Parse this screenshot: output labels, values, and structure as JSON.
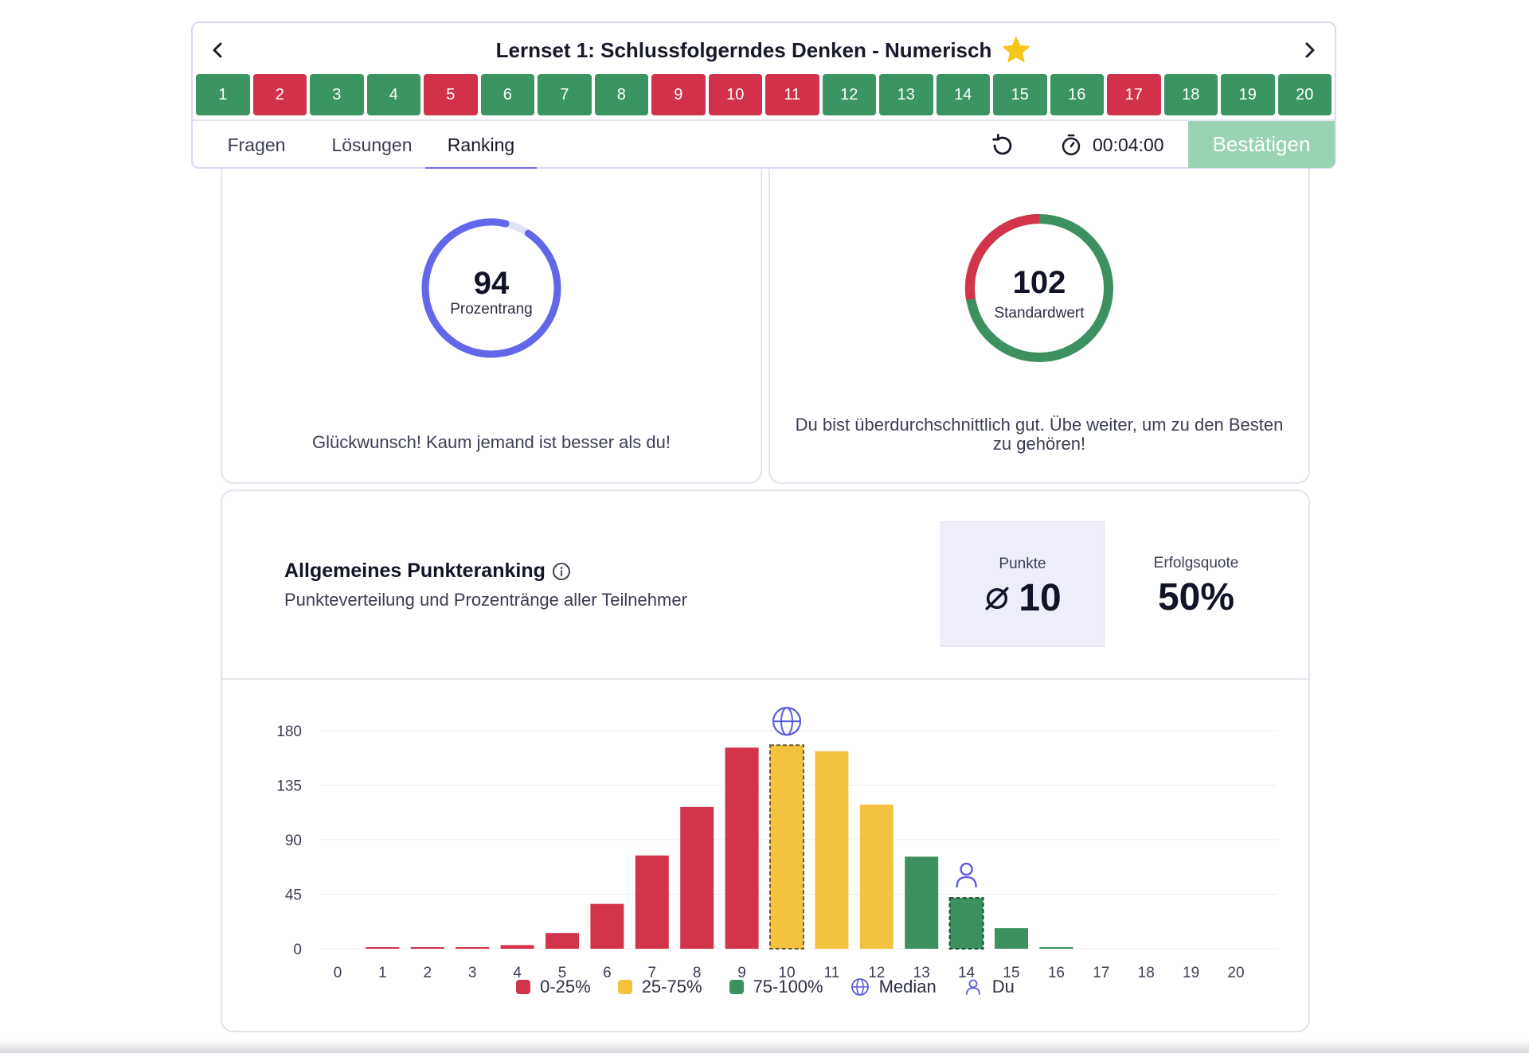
{
  "header": {
    "title": "Lernset 1: Schlussfolgerndes Denken - Numerisch",
    "prev_icon": "chevron-left-icon",
    "next_icon": "chevron-right-icon",
    "star_icon": "star-icon",
    "star_color": "#f5c518"
  },
  "questions": [
    {
      "n": "1",
      "status": "correct"
    },
    {
      "n": "2",
      "status": "wrong"
    },
    {
      "n": "3",
      "status": "correct"
    },
    {
      "n": "4",
      "status": "correct"
    },
    {
      "n": "5",
      "status": "wrong"
    },
    {
      "n": "6",
      "status": "correct"
    },
    {
      "n": "7",
      "status": "correct"
    },
    {
      "n": "8",
      "status": "correct"
    },
    {
      "n": "9",
      "status": "wrong"
    },
    {
      "n": "10",
      "status": "wrong"
    },
    {
      "n": "11",
      "status": "wrong"
    },
    {
      "n": "12",
      "status": "correct"
    },
    {
      "n": "13",
      "status": "correct"
    },
    {
      "n": "14",
      "status": "correct"
    },
    {
      "n": "15",
      "status": "correct"
    },
    {
      "n": "16",
      "status": "correct"
    },
    {
      "n": "17",
      "status": "wrong"
    },
    {
      "n": "18",
      "status": "correct"
    },
    {
      "n": "19",
      "status": "correct"
    },
    {
      "n": "20",
      "status": "correct"
    }
  ],
  "status_colors": {
    "correct": "#3a9563",
    "wrong": "#d1324a"
  },
  "tabs": [
    {
      "label": "Fragen"
    },
    {
      "label": "Lösungen"
    },
    {
      "label": "Ranking",
      "active": true
    }
  ],
  "toolbar": {
    "reset_icon": "reset-icon",
    "timer_icon": "stopwatch-icon",
    "timer": "00:04:00",
    "confirm_label": "Bestätigen"
  },
  "percentile_card": {
    "value": "94",
    "label": "Prozentrang",
    "fraction": 0.94,
    "ring_color": "#6366e8",
    "message": "Glückwunsch! Kaum jemand ist besser als du!"
  },
  "standard_card": {
    "value": "102",
    "label": "Standardwert",
    "message": "Du bist überdurchschnittlich gut. Übe weiter, um zu den Besten zu gehören!"
  },
  "ranking": {
    "title": "Allgemeines Punkteranking",
    "info_icon": "info-icon",
    "subtitle": "Punkteverteilung und Prozentränge aller Teilnehmer",
    "points_label": "Punkte",
    "points_value": "10",
    "avg_icon": "average-icon",
    "rate_label": "Erfolgsquote",
    "rate_value": "50%"
  },
  "chart_data": {
    "type": "bar",
    "categories": [
      "0",
      "1",
      "2",
      "3",
      "4",
      "5",
      "6",
      "7",
      "8",
      "9",
      "10",
      "11",
      "12",
      "13",
      "14",
      "15",
      "16",
      "17",
      "18",
      "19",
      "20"
    ],
    "values": [
      0,
      1,
      1,
      1,
      3,
      13,
      37,
      77,
      117,
      166,
      168,
      163,
      119,
      76,
      42,
      17,
      1,
      0,
      0,
      0,
      0
    ],
    "bands": [
      "low",
      "low",
      "low",
      "low",
      "low",
      "low",
      "low",
      "low",
      "low",
      "low",
      "mid",
      "mid",
      "mid",
      "high",
      "high",
      "high",
      "high",
      "high",
      "high",
      "high",
      "high"
    ],
    "band_colors": {
      "low": "#d1344b",
      "mid": "#f3c23f",
      "high": "#3d9160"
    },
    "median_index": 10,
    "you_index": 14,
    "yticks": [
      0,
      45,
      90,
      135,
      180
    ],
    "ylim": [
      0,
      180
    ],
    "grid": true,
    "legend": [
      {
        "label": "0-25%",
        "kind": "swatch",
        "color": "#d1344b"
      },
      {
        "label": "25-75%",
        "kind": "swatch",
        "color": "#f3c23f"
      },
      {
        "label": "75-100%",
        "kind": "swatch",
        "color": "#3d9160"
      },
      {
        "label": "Median",
        "kind": "icon",
        "icon": "globe-icon"
      },
      {
        "label": "Du",
        "kind": "icon",
        "icon": "user-icon"
      }
    ],
    "legend_placement": "bottom"
  }
}
